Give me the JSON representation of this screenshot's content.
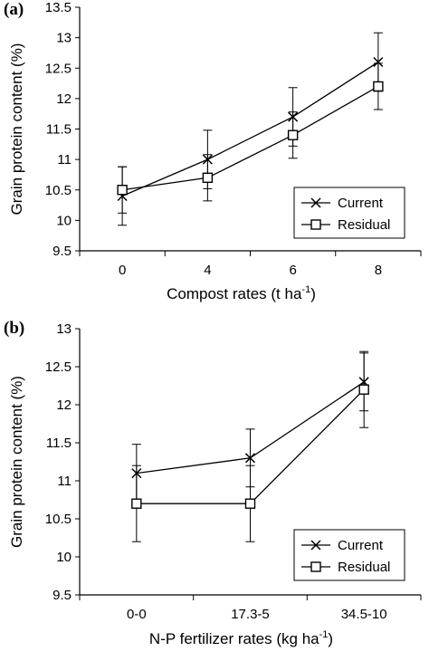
{
  "chart_data": [
    {
      "type": "line",
      "panel_label": "(a)",
      "xlabel": "Compost rates (t ha",
      "xlabel_sup": "-1",
      "xlabel_close": ")",
      "ylabel": "Grain protein content (%)",
      "categories": [
        "0",
        "4",
        "6",
        "8"
      ],
      "ylim": [
        9.5,
        13.5
      ],
      "yticks": [
        "9.5",
        "10",
        "10.5",
        "11",
        "11.5",
        "12",
        "12.5",
        "13",
        "13.5"
      ],
      "legend_position": "bottom-right",
      "series": [
        {
          "name": "Current",
          "marker": "x",
          "values": [
            10.4,
            11.0,
            11.7,
            12.6
          ],
          "errors": [
            0.48,
            0.48,
            0.48,
            0.48
          ]
        },
        {
          "name": "Residual",
          "marker": "square",
          "values": [
            10.5,
            10.7,
            11.4,
            12.2
          ],
          "errors": [
            0.38,
            0.38,
            0.38,
            0.38
          ]
        }
      ]
    },
    {
      "type": "line",
      "panel_label": "(b)",
      "xlabel": "N-P fertilizer rates (kg ha",
      "xlabel_sup": "-1",
      "xlabel_close": ")",
      "ylabel": "Grain protein content (%)",
      "categories": [
        "0-0",
        "17.3-5",
        "34.5-10"
      ],
      "ylim": [
        9.5,
        13.0
      ],
      "yticks": [
        "9.5",
        "10",
        "10.5",
        "11",
        "11.5",
        "12",
        "12.5",
        "13"
      ],
      "legend_position": "bottom-right",
      "series": [
        {
          "name": "Current",
          "marker": "x",
          "values": [
            11.1,
            11.3,
            12.3
          ],
          "errors": [
            0.38,
            0.38,
            0.38
          ]
        },
        {
          "name": "Residual",
          "marker": "square",
          "values": [
            10.7,
            10.7,
            12.2
          ],
          "errors": [
            0.5,
            0.5,
            0.5
          ]
        }
      ]
    }
  ]
}
